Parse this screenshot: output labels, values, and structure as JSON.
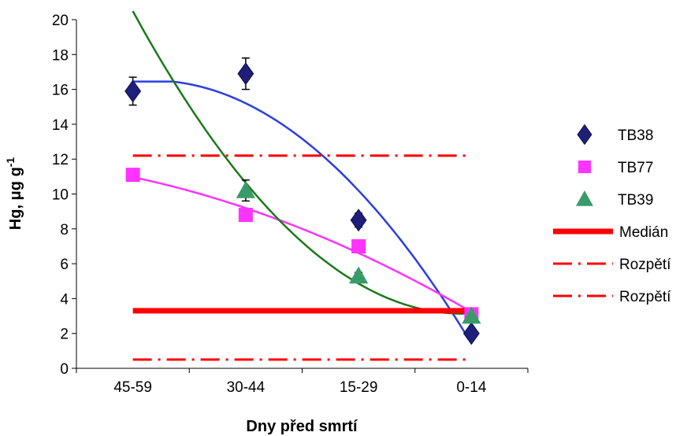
{
  "chart_data": {
    "type": "scatter",
    "xlabel": "Dny před smrtí",
    "ylabel": {
      "main": "Hg, μg g",
      "sup": "-1"
    },
    "categories": [
      "45-59",
      "30-44",
      "15-29",
      "0-14"
    ],
    "ylim": [
      0,
      20
    ],
    "yticks": [
      0,
      2,
      4,
      6,
      8,
      10,
      12,
      14,
      16,
      18,
      20
    ],
    "grid": false,
    "legend_position": "right",
    "series": [
      {
        "name": "TB38",
        "marker": "diamond",
        "color": "#1f1f7a",
        "values": [
          15.9,
          16.9,
          8.5,
          2.0
        ],
        "errors": [
          0.8,
          0.9,
          0.4,
          0.2
        ],
        "trend_color": "#2b3fe0"
      },
      {
        "name": "TB77",
        "marker": "square",
        "color": "#ff33ff",
        "values": [
          11.1,
          8.8,
          7.0,
          3.1
        ],
        "errors": [
          0.2,
          0.2,
          0.2,
          0.1
        ],
        "trend_color": "#ff33ff"
      },
      {
        "name": "TB39",
        "marker": "triangle",
        "color": "#3a9b6a",
        "values": [
          null,
          10.2,
          5.3,
          3.0
        ],
        "errors": [
          null,
          0.6,
          0.2,
          0.1
        ],
        "trend_color": "#1a7a1a"
      },
      {
        "name": "Medián",
        "style": "solid-thick",
        "color": "#ff0000",
        "values": [
          3.3,
          3.3,
          3.3,
          3.3
        ]
      },
      {
        "name": "Rozpětí",
        "style": "dashdot",
        "color": "#ff0000",
        "values": [
          12.2,
          12.2,
          12.2,
          12.2
        ]
      },
      {
        "name": "Rozpětí",
        "style": "dashdot",
        "color": "#ff0000",
        "values": [
          0.5,
          0.5,
          0.5,
          0.5
        ]
      }
    ]
  }
}
